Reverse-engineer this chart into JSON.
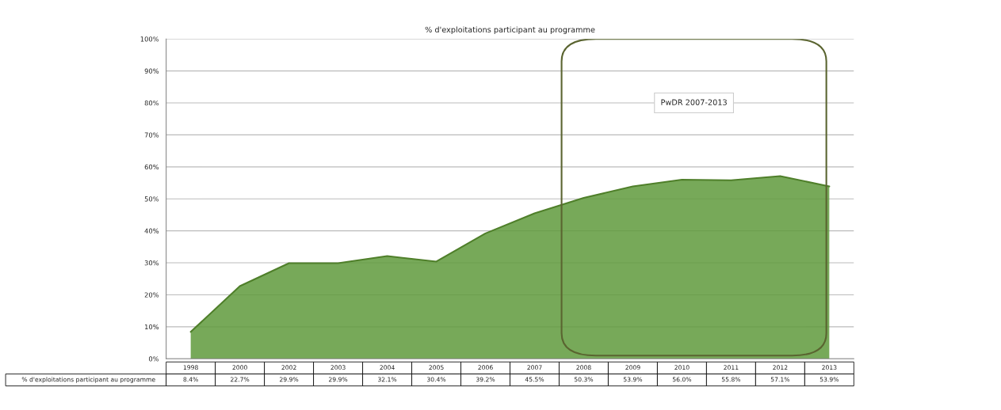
{
  "chart_data": {
    "type": "area",
    "title": "% d'exploitations participant au programme",
    "categories": [
      "1998",
      "2000",
      "2002",
      "2003",
      "2004",
      "2005",
      "2006",
      "2007",
      "2008",
      "2009",
      "2010",
      "2011",
      "2012",
      "2013"
    ],
    "series": [
      {
        "name": "% d'exploitations participant au programme",
        "color": "#5f9a3c",
        "values": [
          8.4,
          22.7,
          29.9,
          29.9,
          32.1,
          30.4,
          39.2,
          45.5,
          50.3,
          53.9,
          56.0,
          55.8,
          57.1,
          53.9
        ],
        "value_labels": [
          "8.4%",
          "22.7%",
          "29.9%",
          "29.9%",
          "32.1%",
          "30.4%",
          "39.2%",
          "45.5%",
          "50.3%",
          "53.9%",
          "56.0%",
          "55.8%",
          "57.1%",
          "53.9%"
        ]
      }
    ],
    "ylim": [
      0,
      100
    ],
    "yticks": [
      {
        "value": 0,
        "label": "0%"
      },
      {
        "value": 10,
        "label": "10%"
      },
      {
        "value": 20,
        "label": "20%"
      },
      {
        "value": 30,
        "label": "30%"
      },
      {
        "value": 40,
        "label": "40%"
      },
      {
        "value": 50,
        "label": "50%"
      },
      {
        "value": 60,
        "label": "60%"
      },
      {
        "value": 70,
        "label": "70%"
      },
      {
        "value": 80,
        "label": "80%"
      },
      {
        "value": 90,
        "label": "90%"
      },
      {
        "value": 100,
        "label": "100%"
      }
    ],
    "grid": "y",
    "tick_labels": "y",
    "annotations": [
      "PwDR 2007-2013"
    ]
  }
}
